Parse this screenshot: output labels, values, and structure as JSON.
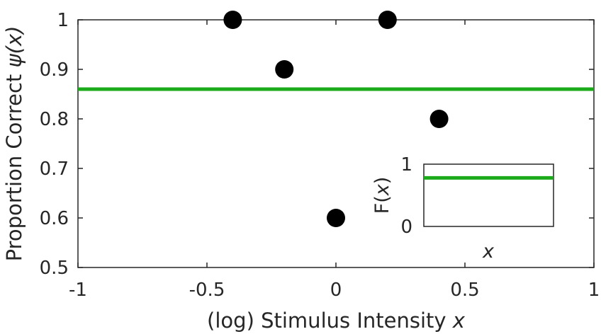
{
  "chart_data": [
    {
      "type": "scatter",
      "x": [
        -0.4,
        -0.2,
        0,
        0.2,
        0.4
      ],
      "y": [
        1,
        0.9,
        0.6,
        1,
        0.8
      ],
      "xlim": [
        -1,
        1
      ],
      "ylim": [
        0.5,
        1
      ],
      "xticks": [
        "-1",
        "-0.5",
        "0",
        "0.5",
        "1"
      ],
      "yticks": [
        "0.5",
        "0.6",
        "0.7",
        "0.8",
        "0.9",
        "1"
      ],
      "xlabel": "(log) Stimulus Intensity x",
      "xlabel_parts": {
        "text": "(log) Stimulus Intensity ",
        "var": "x"
      },
      "ylabel": "Proportion Correct ψ(x)",
      "ylabel_parts": {
        "text": "Proportion Correct ",
        "var": "ψ(x)"
      },
      "fit_line": {
        "y": 0.86,
        "color": "#1aaa1a"
      },
      "marker_color": "#000000",
      "grid": false
    },
    {
      "type": "line",
      "inset": true,
      "ylim": [
        0,
        1
      ],
      "yticks": [
        "0",
        "1"
      ],
      "xlabel": "x",
      "ylabel": "F(x)",
      "ylabel_parts": {
        "text": "F(",
        "var": "x",
        "end": ")"
      },
      "line": {
        "y": 0.78,
        "color": "#1aaa1a"
      }
    }
  ]
}
